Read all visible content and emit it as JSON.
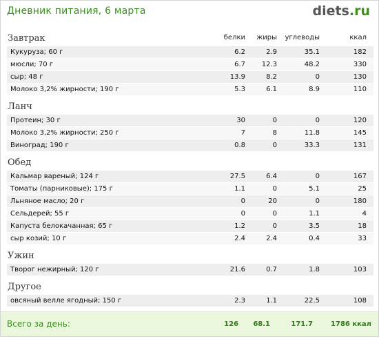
{
  "header": {
    "title": "Дневник питания, 6 марта",
    "logo_main": "diets",
    "logo_tld": ".ru"
  },
  "columns": {
    "protein": "белки",
    "fat": "жиры",
    "carbs": "углеводы",
    "kcal": "ккал"
  },
  "meals": [
    {
      "name": "Завтрак",
      "items": [
        {
          "food": "Кукуруза; 60 г",
          "protein": "6.2",
          "fat": "2.9",
          "carbs": "35.1",
          "kcal": "182"
        },
        {
          "food": "мюсли; 70 г",
          "protein": "6.7",
          "fat": "12.3",
          "carbs": "48.2",
          "kcal": "330"
        },
        {
          "food": "сыр; 48 г",
          "protein": "13.9",
          "fat": "8.2",
          "carbs": "0",
          "kcal": "130"
        },
        {
          "food": "Молоко 3,2% жирности; 190 г",
          "protein": "5.3",
          "fat": "6.1",
          "carbs": "8.9",
          "kcal": "110"
        }
      ]
    },
    {
      "name": "Ланч",
      "items": [
        {
          "food": "Протеин; 30 г",
          "protein": "30",
          "fat": "0",
          "carbs": "0",
          "kcal": "120"
        },
        {
          "food": "Молоко 3,2% жирности; 250 г",
          "protein": "7",
          "fat": "8",
          "carbs": "11.8",
          "kcal": "145"
        },
        {
          "food": "Виноград; 190 г",
          "protein": "0.8",
          "fat": "0",
          "carbs": "33.3",
          "kcal": "131"
        }
      ]
    },
    {
      "name": "Обед",
      "items": [
        {
          "food": "Кальмар вареный; 124 г",
          "protein": "27.5",
          "fat": "6.4",
          "carbs": "0",
          "kcal": "167"
        },
        {
          "food": "Томаты (парниковые); 175 г",
          "protein": "1.1",
          "fat": "0",
          "carbs": "5.1",
          "kcal": "25"
        },
        {
          "food": "Льняное масло; 20 г",
          "protein": "0",
          "fat": "20",
          "carbs": "0",
          "kcal": "180"
        },
        {
          "food": "Сельдерей; 55 г",
          "protein": "0",
          "fat": "0",
          "carbs": "1.1",
          "kcal": "4"
        },
        {
          "food": "Капуста белокачанная; 65 г",
          "protein": "1.2",
          "fat": "0",
          "carbs": "3.5",
          "kcal": "18"
        },
        {
          "food": "сыр козий; 10 г",
          "protein": "2.4",
          "fat": "2.4",
          "carbs": "0.4",
          "kcal": "33"
        }
      ]
    },
    {
      "name": "Ужин",
      "items": [
        {
          "food": "Творог нежирный; 120 г",
          "protein": "21.6",
          "fat": "0.7",
          "carbs": "1.8",
          "kcal": "103"
        }
      ]
    },
    {
      "name": "Другое",
      "items": [
        {
          "food": "овсяный велле ягодный; 150 г",
          "protein": "2.3",
          "fat": "1.1",
          "carbs": "22.5",
          "kcal": "108"
        }
      ]
    }
  ],
  "totals": {
    "label": "Всего за день:",
    "protein": "126",
    "fat": "68.1",
    "carbs": "171.7",
    "kcal": "1786 ккал"
  }
}
